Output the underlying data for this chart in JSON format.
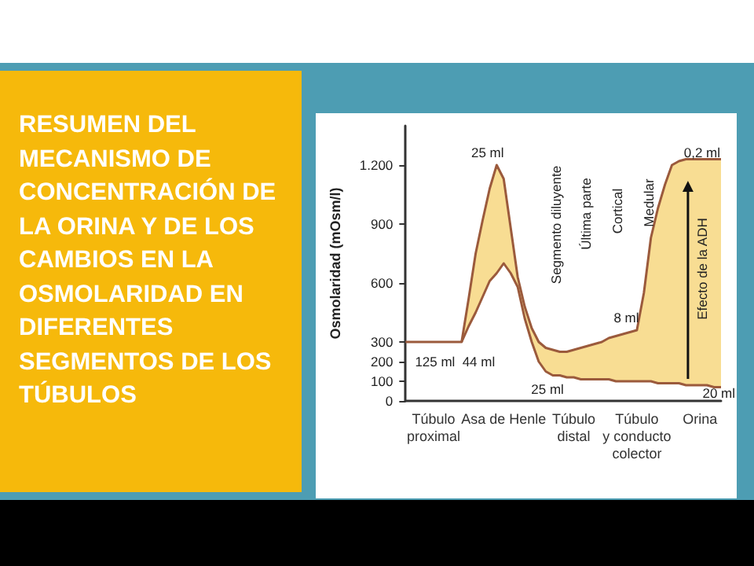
{
  "chart_data": {
    "type": "line",
    "title": "RESUMEN DEL MECANISMO DE CONCENTRACIÓN DE LA ORINA Y DE LOS CAMBIOS EN LA OSMOLARIDAD EN DIFERENTES SEGMENTOS DE LOS TÚBULOS",
    "ylabel": "Osmolaridad (mOsm/l)",
    "categories": [
      null,
      null,
      null,
      null,
      "Túbulo\nproximal",
      null,
      null,
      null,
      null,
      null,
      null,
      null,
      null,
      null,
      "Asa de Henle",
      null,
      null,
      null,
      null,
      null,
      null,
      null,
      null,
      null,
      "Túbulo\ndistal",
      null,
      null,
      null,
      null,
      null,
      null,
      null,
      null,
      "Túbulo\ny conducto\ncolector",
      null,
      null,
      null,
      null,
      null,
      null,
      null,
      null,
      "Orina",
      null,
      null,
      null
    ],
    "series": [
      {
        "color": "#9b5a3c",
        "values": [
          300,
          300,
          300,
          300,
          300,
          300,
          300,
          300,
          300,
          520,
          750,
          920,
          1080,
          1200,
          1130,
          880,
          630,
          480,
          370,
          300,
          270,
          260,
          250,
          250,
          260,
          270,
          280,
          290,
          300,
          320,
          330,
          340,
          350,
          360,
          550,
          830,
          980,
          1100,
          1200,
          1220,
          1230,
          1230,
          1230,
          1230,
          1230,
          1230
        ],
        "upper": [
          null,
          null,
          null,
          null,
          null,
          null,
          null,
          null,
          300,
          520,
          750,
          920,
          1080,
          1200,
          1130,
          880,
          630,
          480,
          370,
          300,
          270,
          260,
          250,
          250,
          260,
          270,
          280,
          290,
          300,
          320,
          330,
          340,
          350,
          360,
          550,
          830,
          980,
          1100,
          1200,
          1220,
          1230,
          1230,
          1230,
          1230,
          1230,
          1230
        ],
        "lower": [
          null,
          null,
          null,
          null,
          null,
          null,
          null,
          null,
          300,
          380,
          450,
          530,
          610,
          650,
          700,
          650,
          580,
          420,
          300,
          200,
          150,
          130,
          130,
          120,
          120,
          110,
          110,
          110,
          110,
          110,
          100,
          100,
          100,
          100,
          100,
          100,
          90,
          90,
          90,
          90,
          80,
          80,
          80,
          80,
          70,
          70
        ]
      },
      {
        "color": "#9b5a3c",
        "values": [
          null,
          null,
          null,
          null,
          null,
          null,
          null,
          null,
          300,
          380,
          450,
          530,
          610,
          650,
          700,
          650,
          580,
          420,
          300,
          200,
          150,
          130,
          130,
          120,
          120,
          110,
          110,
          110,
          110,
          110,
          100,
          100,
          100,
          100,
          100,
          100,
          90,
          90,
          90,
          90,
          80,
          80,
          80,
          80,
          70,
          70
        ]
      }
    ],
    "ylim": [
      0,
      1400
    ],
    "yticks": [
      0,
      100,
      200,
      300,
      600,
      900,
      {
        "value": 1200,
        "label": "1.200"
      }
    ],
    "grid": false,
    "marker": "none",
    "line_style": "solid",
    "annotations": [
      "125 ml",
      "44 ml",
      "25 ml",
      "25 ml",
      "8 ml",
      "0,2 ml",
      "20 ml",
      "Efecto de la ADH",
      "Segmento diluyente",
      "Última parte",
      "Cortical",
      "Medular"
    ]
  }
}
